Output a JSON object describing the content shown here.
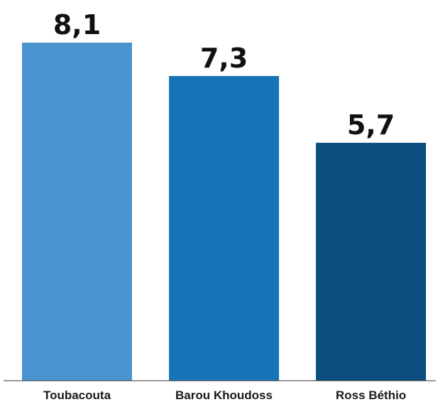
{
  "chart_data": {
    "type": "bar",
    "categories": [
      "Toubacouta",
      "Barou Khoudoss",
      "Ross Béthio"
    ],
    "values": [
      8.1,
      7.3,
      5.7
    ],
    "value_labels": [
      "8,1",
      "7,3",
      "5,7"
    ],
    "colors": [
      "#4a94d0",
      "#1874b8",
      "#0c4f7e"
    ],
    "axis_color": "#333333",
    "title": "",
    "xlabel": "",
    "ylabel": "",
    "ylim": [
      0,
      8.1
    ],
    "grid": false,
    "legend": "none"
  }
}
